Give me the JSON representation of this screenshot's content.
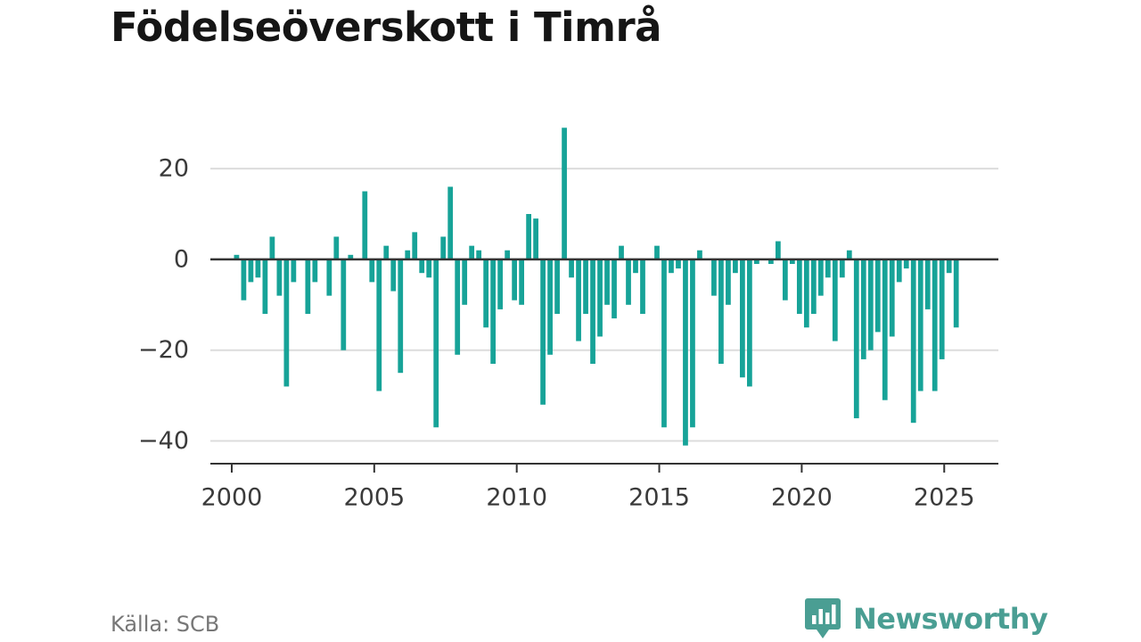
{
  "title": "Födelseöverskott i Timrå",
  "source": "Källa: SCB",
  "brand": {
    "name": "Newsworthy",
    "color": "#4a9e93",
    "icon": "chat-bar-chart-icon"
  },
  "chart_data": {
    "type": "bar",
    "title": "Födelseöverskott i Timrå",
    "xlabel": "",
    "ylabel": "",
    "bar_color": "#17a398",
    "grid": true,
    "xlim": [
      1999.25,
      2026.9
    ],
    "ylim": [
      -45,
      32
    ],
    "yticks": [
      20,
      0,
      -20,
      -40
    ],
    "ytick_labels": [
      "20",
      "0",
      "−20",
      "−40"
    ],
    "xticks": [
      2000,
      2005,
      2010,
      2015,
      2020,
      2025
    ],
    "xtick_labels": [
      "2000",
      "2005",
      "2010",
      "2015",
      "2020",
      "2025"
    ],
    "x": [
      2000.17,
      2000.42,
      2000.67,
      2000.92,
      2001.17,
      2001.42,
      2001.67,
      2001.92,
      2002.17,
      2002.42,
      2002.67,
      2002.92,
      2003.17,
      2003.42,
      2003.67,
      2003.92,
      2004.17,
      2004.42,
      2004.67,
      2004.92,
      2005.17,
      2005.42,
      2005.67,
      2005.92,
      2006.17,
      2006.42,
      2006.67,
      2006.92,
      2007.17,
      2007.42,
      2007.67,
      2007.92,
      2008.17,
      2008.42,
      2008.67,
      2008.92,
      2009.17,
      2009.42,
      2009.67,
      2009.92,
      2010.17,
      2010.42,
      2010.67,
      2010.92,
      2011.17,
      2011.42,
      2011.67,
      2011.92,
      2012.17,
      2012.42,
      2012.67,
      2012.92,
      2013.17,
      2013.42,
      2013.67,
      2013.92,
      2014.17,
      2014.42,
      2014.67,
      2014.92,
      2015.17,
      2015.42,
      2015.67,
      2015.92,
      2016.17,
      2016.42,
      2016.67,
      2016.92,
      2017.17,
      2017.42,
      2017.67,
      2017.92,
      2018.17,
      2018.42,
      2018.67,
      2018.92,
      2019.17,
      2019.42,
      2019.67,
      2019.92,
      2020.17,
      2020.42,
      2020.67,
      2020.92,
      2021.17,
      2021.42,
      2021.67,
      2021.92,
      2022.17,
      2022.42,
      2022.67,
      2022.92,
      2023.17,
      2023.42,
      2023.67,
      2023.92,
      2024.17,
      2024.42,
      2024.67,
      2024.92,
      2025.17,
      2025.42
    ],
    "values": [
      1,
      -9,
      -5,
      -4,
      -12,
      5,
      -8,
      -28,
      -5,
      0,
      -12,
      -5,
      0,
      -8,
      5,
      -20,
      1,
      0,
      15,
      -5,
      -29,
      3,
      -7,
      -25,
      2,
      6,
      -3,
      -4,
      -37,
      5,
      16,
      -21,
      -10,
      3,
      2,
      -15,
      -23,
      -11,
      2,
      -9,
      -10,
      10,
      9,
      -32,
      -21,
      -12,
      29,
      -4,
      -18,
      -12,
      -23,
      -17,
      -10,
      -13,
      3,
      -10,
      -3,
      -12,
      0,
      3,
      -37,
      -3,
      -2,
      -41,
      -37,
      2,
      0,
      -8,
      -23,
      -10,
      -3,
      -26,
      -28,
      -1,
      0,
      -1,
      4,
      -9,
      -1,
      -12,
      -15,
      -12,
      -8,
      -4,
      -18,
      -4,
      2,
      -35,
      -22,
      -20,
      -16,
      -31,
      -17,
      -5,
      -2,
      -36,
      -29,
      -11,
      -29,
      -22,
      -3,
      -15
    ]
  }
}
